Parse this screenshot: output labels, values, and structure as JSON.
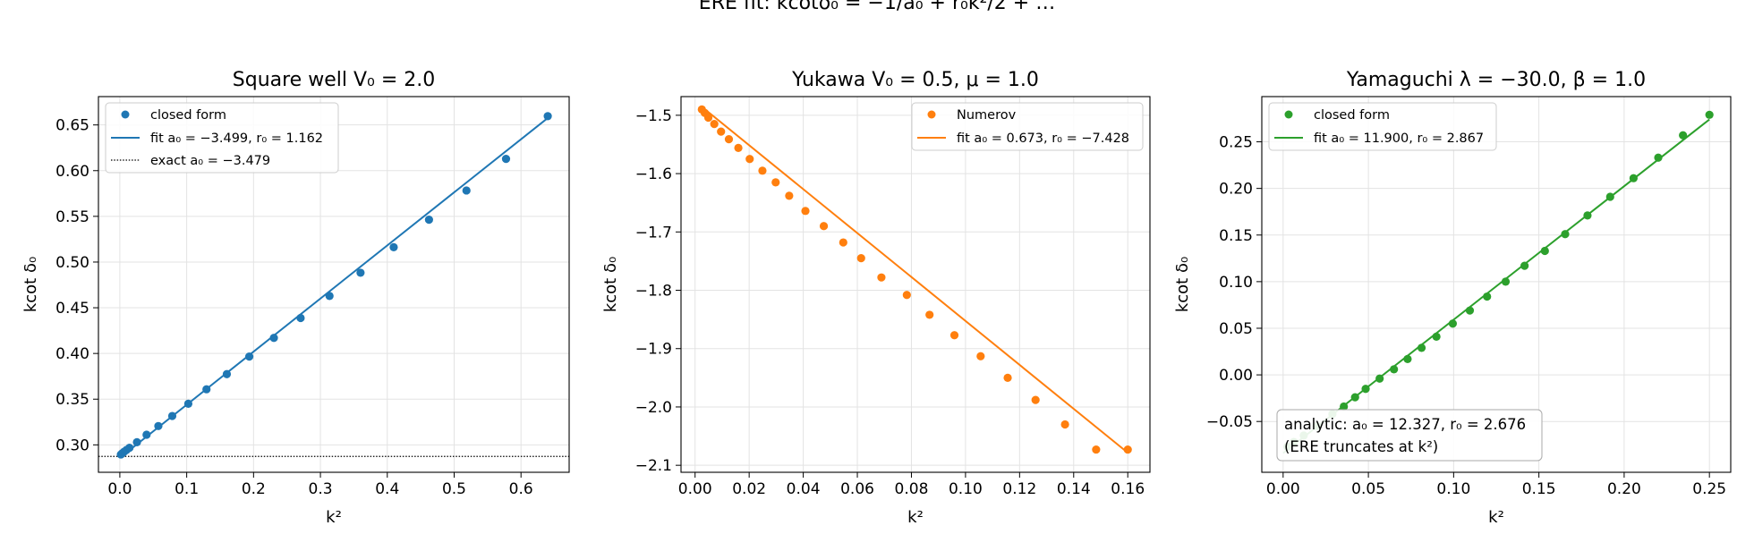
{
  "suptitle": "ERE fit: kcotδ₀ = −1/a₀ + r₀k²/2 + …",
  "chart_data": [
    {
      "type": "scatter",
      "title": "Square well V₀ = 2.0",
      "xlabel": "k²",
      "ylabel": "kcot δ₀",
      "xlim": [
        -0.032,
        0.672
      ],
      "ylim": [
        0.27,
        0.681
      ],
      "xticks": [
        0.0,
        0.1,
        0.2,
        0.3,
        0.4,
        0.5,
        0.6
      ],
      "xtick_labels": [
        "0.0",
        "0.1",
        "0.2",
        "0.3",
        "0.4",
        "0.5",
        "0.6"
      ],
      "yticks": [
        0.3,
        0.35,
        0.4,
        0.45,
        0.5,
        0.55,
        0.6,
        0.65
      ],
      "ytick_labels": [
        "0.30",
        "0.35",
        "0.40",
        "0.45",
        "0.50",
        "0.55",
        "0.60",
        "0.65"
      ],
      "grid": true,
      "legend_position": "upper-left",
      "color": "#1f77b4",
      "points_name": "closed form",
      "fit_name": "fit a₀ = −3.499, r₀ = 1.162",
      "fit_line": {
        "x": [
          0.0,
          0.64
        ],
        "y": [
          0.2858,
          0.6576
        ]
      },
      "reference_name": "exact a₀ = −3.479",
      "reference_y": 0.2874,
      "x": [
        0.0016,
        0.0064,
        0.0144,
        0.0256,
        0.04,
        0.0576,
        0.0784,
        0.1024,
        0.1296,
        0.16,
        0.1936,
        0.2304,
        0.2704,
        0.3136,
        0.36,
        0.4096,
        0.4624,
        0.5184,
        0.5776,
        0.64,
        0.0036,
        0.01
      ],
      "y": [
        0.2895,
        0.2925,
        0.2968,
        0.3029,
        0.3111,
        0.3206,
        0.3316,
        0.345,
        0.3608,
        0.3774,
        0.3966,
        0.417,
        0.4388,
        0.4629,
        0.4883,
        0.5162,
        0.5463,
        0.5783,
        0.6129,
        0.6596,
        0.2908,
        0.2945
      ],
      "annotation": ""
    },
    {
      "type": "scatter",
      "title": "Yukawa V₀ = 0.5, μ = 1.0",
      "xlabel": "k²",
      "ylabel": "kcot δ₀",
      "xlim": [
        -0.0052,
        0.1682
      ],
      "ylim": [
        -2.112,
        -1.468
      ],
      "xticks": [
        0.0,
        0.02,
        0.04,
        0.06,
        0.08,
        0.1,
        0.12,
        0.14,
        0.16
      ],
      "xtick_labels": [
        "0.00",
        "0.02",
        "0.04",
        "0.06",
        "0.08",
        "0.10",
        "0.12",
        "0.14",
        "0.16"
      ],
      "yticks": [
        -2.1,
        -2.0,
        -1.9,
        -1.8,
        -1.7,
        -1.6,
        -1.5
      ],
      "ytick_labels": [
        "−2.1",
        "−2.0",
        "−1.9",
        "−1.8",
        "−1.7",
        "−1.6",
        "−1.5"
      ],
      "grid": true,
      "legend_position": "upper-right",
      "color": "#ff7f0e",
      "points_name": "Numerov",
      "fit_name": "fit a₀ = 0.673, r₀ = −7.428",
      "fit_line": {
        "x": [
          0.0025,
          0.16
        ],
        "y": [
          -1.4855,
          -2.0785
        ]
      },
      "x": [
        0.0025,
        0.0036,
        0.0049,
        0.0071,
        0.0096,
        0.0125,
        0.016,
        0.0202,
        0.0249,
        0.0298,
        0.0348,
        0.0408,
        0.0476,
        0.0548,
        0.0614,
        0.0689,
        0.0783,
        0.0867,
        0.0959,
        0.1056,
        0.1156,
        0.1259,
        0.1368,
        0.1483,
        0.16
      ],
      "y": [
        -1.49,
        -1.496,
        -1.504,
        -1.515,
        -1.528,
        -1.541,
        -1.556,
        -1.575,
        -1.595,
        -1.615,
        -1.638,
        -1.664,
        -1.69,
        -1.718,
        -1.745,
        -1.778,
        -1.808,
        -1.842,
        -1.877,
        -1.913,
        -1.95,
        -1.988,
        -2.03,
        -2.073,
        -2.073
      ],
      "annotation": ""
    },
    {
      "type": "scatter",
      "title": "Yamaguchi λ = −30.0, β = 1.0",
      "xlabel": "k²",
      "ylabel": "kcot δ₀",
      "xlim": [
        -0.0125,
        0.2625
      ],
      "ylim": [
        -0.1045,
        0.2985
      ],
      "xticks": [
        0.0,
        0.05,
        0.1,
        0.15,
        0.2,
        0.25
      ],
      "xtick_labels": [
        "0.00",
        "0.05",
        "0.10",
        "0.15",
        "0.20",
        "0.25"
      ],
      "yticks": [
        -0.05,
        0.0,
        0.05,
        0.1,
        0.15,
        0.2,
        0.25
      ],
      "ytick_labels": [
        "−0.05",
        "0.00",
        "0.05",
        "0.10",
        "0.15",
        "0.20",
        "0.25"
      ],
      "grid": true,
      "legend_position": "upper-left",
      "color": "#2ca02c",
      "points_name": "closed form",
      "fit_name": "fit a₀ = 11.900, r₀ = 2.867",
      "fit_line": {
        "x": [
          0.0,
          0.25
        ],
        "y": [
          -0.084,
          0.274
        ]
      },
      "x": [
        0.0025,
        0.0063,
        0.0121,
        0.0196,
        0.0289,
        0.0356,
        0.0422,
        0.0484,
        0.0566,
        0.065,
        0.073,
        0.0812,
        0.0899,
        0.0995,
        0.1095,
        0.1196,
        0.1305,
        0.1416,
        0.1535,
        0.1654,
        0.1785,
        0.1918,
        0.2055,
        0.22,
        0.2345,
        0.25
      ],
      "y": [
        -0.077,
        -0.072,
        -0.065,
        -0.055,
        -0.042,
        -0.034,
        -0.024,
        -0.015,
        -0.004,
        0.006,
        0.017,
        0.029,
        0.041,
        0.055,
        0.069,
        0.084,
        0.1,
        0.117,
        0.133,
        0.151,
        0.171,
        0.191,
        0.211,
        0.233,
        0.257,
        0.279
      ],
      "annotation": "analytic: a₀ = 12.327, r₀ = 2.676",
      "annotation_line2": "(ERE truncates at k²)"
    }
  ]
}
